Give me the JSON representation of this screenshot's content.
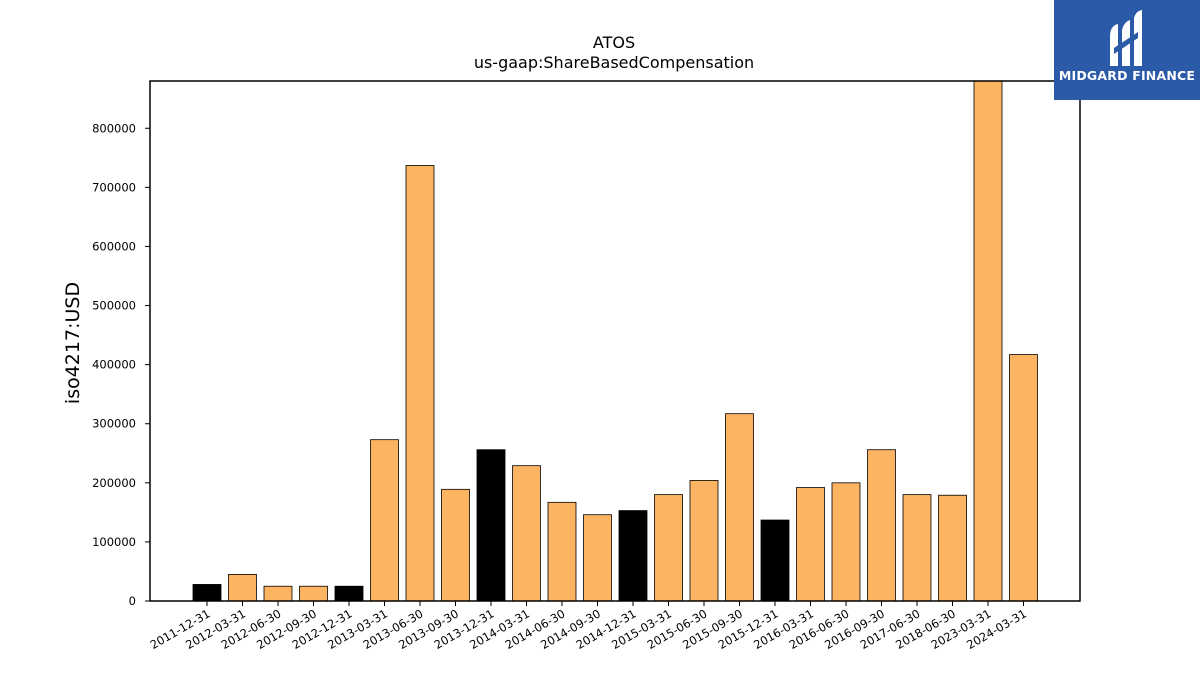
{
  "brand": {
    "name": "MIDGARD FINANCE",
    "icon": "midgard-logo-icon",
    "background": "#2b5aa8"
  },
  "colors": {
    "primary_bar": "#fdb462",
    "highlight_bar": "#000000",
    "bar_edge": "#000000"
  },
  "chart_data": {
    "type": "bar",
    "title": "ATOS",
    "subtitle": "us-gaap:ShareBasedCompensation",
    "ylabel": "iso4217:USD",
    "xlabel": "",
    "ylim": [
      0,
      880000
    ],
    "yticks": [
      0,
      100000,
      200000,
      300000,
      400000,
      500000,
      600000,
      700000,
      800000
    ],
    "grid": false,
    "categories": [
      "2011-12-31",
      "2012-03-31",
      "2012-06-30",
      "2012-09-30",
      "2012-12-31",
      "2013-03-31",
      "2013-06-30",
      "2013-09-30",
      "2013-12-31",
      "2014-03-31",
      "2014-06-30",
      "2014-09-30",
      "2014-12-31",
      "2015-03-31",
      "2015-06-30",
      "2015-09-30",
      "2015-12-31",
      "2016-03-31",
      "2016-06-30",
      "2016-09-30",
      "2017-06-30",
      "2018-06-30",
      "2023-03-31",
      "2024-03-31"
    ],
    "values": [
      28000,
      45000,
      25000,
      25000,
      25000,
      273000,
      737000,
      189000,
      256000,
      229000,
      167000,
      146000,
      153000,
      180000,
      204000,
      317000,
      137000,
      192000,
      200000,
      256000,
      180000,
      179000,
      880000,
      417000
    ],
    "highlighted": [
      true,
      false,
      false,
      false,
      true,
      false,
      false,
      false,
      true,
      false,
      false,
      false,
      true,
      false,
      false,
      false,
      true,
      false,
      false,
      false,
      false,
      false,
      false,
      false
    ]
  }
}
